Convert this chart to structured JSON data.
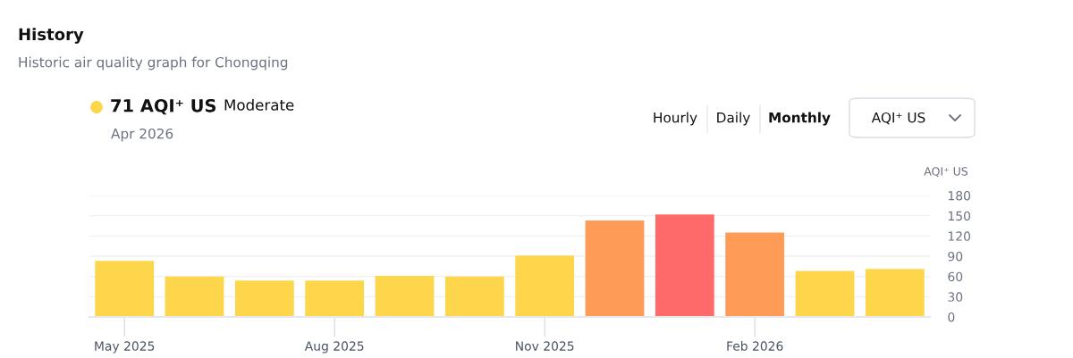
{
  "chart_data": {
    "type": "bar",
    "title": "History",
    "subtitle": "Historic air quality graph for Chongqing",
    "ylabel": "AQI⁺ US",
    "categories": [
      "May 2025",
      null,
      null,
      "Aug 2025",
      null,
      null,
      "Nov 2025",
      null,
      null,
      "Feb 2026",
      null,
      null
    ],
    "values": [
      83,
      60,
      54,
      54,
      61,
      60,
      91,
      143,
      152,
      125,
      68,
      71
    ],
    "colors": [
      "#fdd64b",
      "#fdd64b",
      "#fdd64b",
      "#fdd64b",
      "#fdd64b",
      "#fdd64b",
      "#fdd64b",
      "#fe9b57",
      "#fe6a69",
      "#fe9b57",
      "#fdd64b",
      "#fdd64b"
    ],
    "ylim": [
      0,
      180
    ],
    "yticks": [
      0,
      30,
      60,
      90,
      120,
      150,
      180
    ],
    "grid": "y",
    "annotations": [
      "71 AQI⁺ US",
      "Moderate",
      "Apr 2026",
      "Hourly",
      "Daily",
      "Monthly",
      "AQI⁺ US"
    ]
  }
}
